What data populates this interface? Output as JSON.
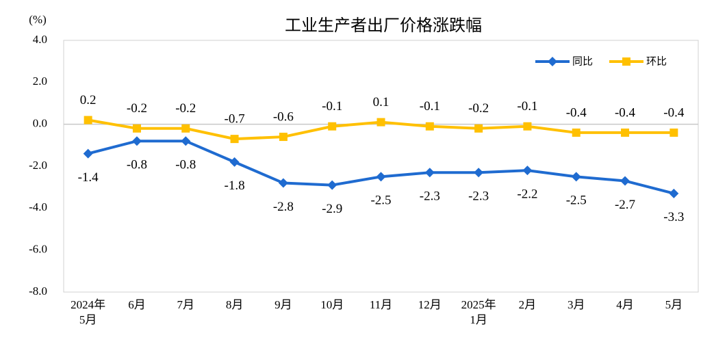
{
  "chart_data": {
    "type": "line",
    "title": "工业生产者出厂价格涨跌幅",
    "y_label": "(%)",
    "categories": [
      "2024年\n5月",
      "6月",
      "7月",
      "8月",
      "9月",
      "10月",
      "11月",
      "12月",
      "2025年\n1月",
      "2月",
      "3月",
      "4月",
      "5月"
    ],
    "series": [
      {
        "name": "同比",
        "color": "#1f6bd0",
        "marker": "diamond",
        "label_side": "below",
        "values": [
          -1.4,
          -0.8,
          -0.8,
          -1.8,
          -2.8,
          -2.9,
          -2.5,
          -2.3,
          -2.3,
          -2.2,
          -2.5,
          -2.7,
          -3.3
        ]
      },
      {
        "name": "环比",
        "color": "#ffc000",
        "marker": "square",
        "label_side": "above",
        "values": [
          0.2,
          -0.2,
          -0.2,
          -0.7,
          -0.6,
          -0.1,
          0.1,
          -0.1,
          -0.2,
          -0.1,
          -0.4,
          -0.4,
          -0.4
        ]
      }
    ],
    "ylim": [
      -8,
      4
    ],
    "yticks": [
      {
        "value": 4,
        "label": "4.0"
      },
      {
        "value": 2,
        "label": "2.0"
      },
      {
        "value": 0,
        "label": "0.0"
      },
      {
        "value": -2,
        "label": "-2.0"
      },
      {
        "value": -4,
        "label": "-4.0"
      },
      {
        "value": -6,
        "label": "-6.0"
      },
      {
        "value": -8,
        "label": "-8.0"
      }
    ],
    "legend": "upper right"
  }
}
